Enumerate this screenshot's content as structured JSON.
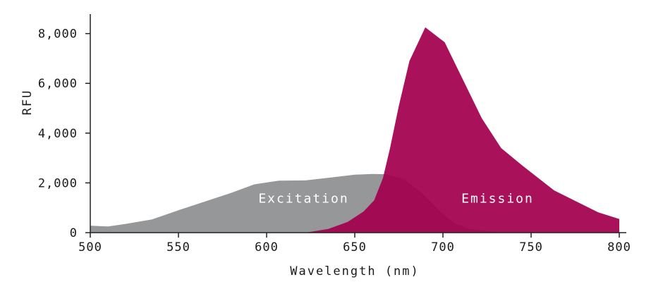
{
  "chart_data": {
    "type": "area",
    "xlabel": "Wavelength (nm)",
    "ylabel": "RFU",
    "xlim": [
      500,
      800
    ],
    "ylim": [
      0,
      8500
    ],
    "x_ticks": [
      500,
      550,
      600,
      650,
      700,
      750,
      800
    ],
    "x_tick_labels": [
      "500",
      "550",
      "600",
      "650",
      "700",
      "750",
      "800"
    ],
    "y_ticks": [
      0,
      2000,
      4000,
      6000,
      8000
    ],
    "y_tick_labels": [
      "0",
      "2,000",
      "4,000",
      "6,000",
      "8,000"
    ],
    "grid": false,
    "series": [
      {
        "name": "Excitation",
        "color": "#959799",
        "label_at": [
          621,
          1200
        ],
        "points": [
          [
            500,
            280
          ],
          [
            510,
            250
          ],
          [
            520,
            350
          ],
          [
            535,
            530
          ],
          [
            550,
            900
          ],
          [
            565,
            1250
          ],
          [
            580,
            1600
          ],
          [
            593,
            1940
          ],
          [
            607,
            2090
          ],
          [
            622,
            2100
          ],
          [
            637,
            2220
          ],
          [
            650,
            2330
          ],
          [
            660,
            2360
          ],
          [
            668,
            2350
          ],
          [
            678,
            2150
          ],
          [
            688,
            1600
          ],
          [
            697,
            950
          ],
          [
            706,
            400
          ],
          [
            715,
            150
          ],
          [
            733,
            0
          ]
        ]
      },
      {
        "name": "Emission",
        "color": "#a3004f",
        "label_at": [
          731,
          1200
        ],
        "points": [
          [
            622,
            0
          ],
          [
            635,
            150
          ],
          [
            646,
            430
          ],
          [
            655,
            850
          ],
          [
            661,
            1300
          ],
          [
            666,
            2200
          ],
          [
            670,
            3400
          ],
          [
            675,
            5100
          ],
          [
            681,
            6900
          ],
          [
            690,
            8250
          ],
          [
            701,
            7650
          ],
          [
            711,
            6200
          ],
          [
            722,
            4600
          ],
          [
            733,
            3400
          ],
          [
            745,
            2700
          ],
          [
            763,
            1700
          ],
          [
            788,
            820
          ],
          [
            800,
            550
          ],
          [
            800,
            0
          ]
        ]
      }
    ]
  }
}
